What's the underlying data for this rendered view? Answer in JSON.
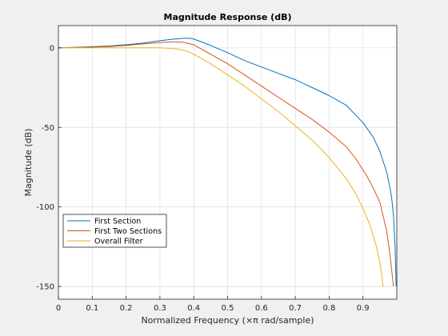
{
  "chart_data": {
    "type": "line",
    "title": "Magnitude Response (dB)",
    "xlabel": "Normalized Frequency (×π rad/sample)",
    "ylabel": "Magnitude (dB)",
    "xlim": [
      0,
      1
    ],
    "ylim": [
      -158,
      14
    ],
    "xticks": [
      0,
      0.1,
      0.2,
      0.3,
      0.4,
      0.5,
      0.6,
      0.7,
      0.8,
      0.9
    ],
    "xtick_labels": [
      "0",
      "0.1",
      "0.2",
      "0.3",
      "0.4",
      "0.5",
      "0.6",
      "0.7",
      "0.8",
      "0.9"
    ],
    "yticks": [
      0,
      -50,
      -100,
      -150
    ],
    "ytick_labels": [
      "0",
      "-50",
      "-100",
      "-150"
    ],
    "grid": true,
    "legend_position": "lower-left",
    "series": [
      {
        "name": "First Section",
        "color": "#0072bd",
        "x": [
          0,
          0.08,
          0.15,
          0.2,
          0.25,
          0.3,
          0.34,
          0.37,
          0.39,
          0.4,
          0.42,
          0.45,
          0.5,
          0.55,
          0.6,
          0.65,
          0.7,
          0.75,
          0.8,
          0.85,
          0.9,
          0.93,
          0.95,
          0.97,
          0.98,
          0.985,
          0.99,
          0.995,
          0.998
        ],
        "y": [
          0,
          0.5,
          1.2,
          2,
          3,
          4.5,
          5.5,
          6,
          6,
          5.5,
          4,
          1.5,
          -3,
          -8,
          -12,
          -16,
          -20,
          -25,
          -30,
          -36,
          -47,
          -56,
          -65,
          -78,
          -88,
          -95,
          -105,
          -125,
          -150
        ]
      },
      {
        "name": "First Two Sections",
        "color": "#d95319",
        "x": [
          0,
          0.08,
          0.15,
          0.2,
          0.25,
          0.3,
          0.34,
          0.37,
          0.39,
          0.4,
          0.42,
          0.45,
          0.5,
          0.55,
          0.6,
          0.65,
          0.7,
          0.75,
          0.8,
          0.85,
          0.88,
          0.91,
          0.93,
          0.95,
          0.97,
          0.98,
          0.99
        ],
        "y": [
          0,
          0.3,
          0.8,
          1.5,
          2.5,
          3.3,
          3.8,
          3.5,
          2.5,
          2,
          -0.5,
          -4,
          -10,
          -17,
          -24,
          -31,
          -38,
          -45,
          -53,
          -62,
          -70,
          -80,
          -88,
          -97,
          -115,
          -130,
          -150
        ]
      },
      {
        "name": "Overall Filter",
        "color": "#edb120",
        "x": [
          0,
          0.1,
          0.2,
          0.3,
          0.33,
          0.36,
          0.38,
          0.4,
          0.45,
          0.5,
          0.55,
          0.6,
          0.65,
          0.7,
          0.75,
          0.8,
          0.85,
          0.88,
          0.9,
          0.92,
          0.94,
          0.95,
          0.96
        ],
        "y": [
          0,
          0,
          0,
          0,
          -0.3,
          -1,
          -2,
          -4,
          -10,
          -17,
          -24,
          -32,
          -40,
          -49,
          -58,
          -69,
          -82,
          -92,
          -101,
          -111,
          -125,
          -135,
          -150
        ]
      }
    ]
  }
}
